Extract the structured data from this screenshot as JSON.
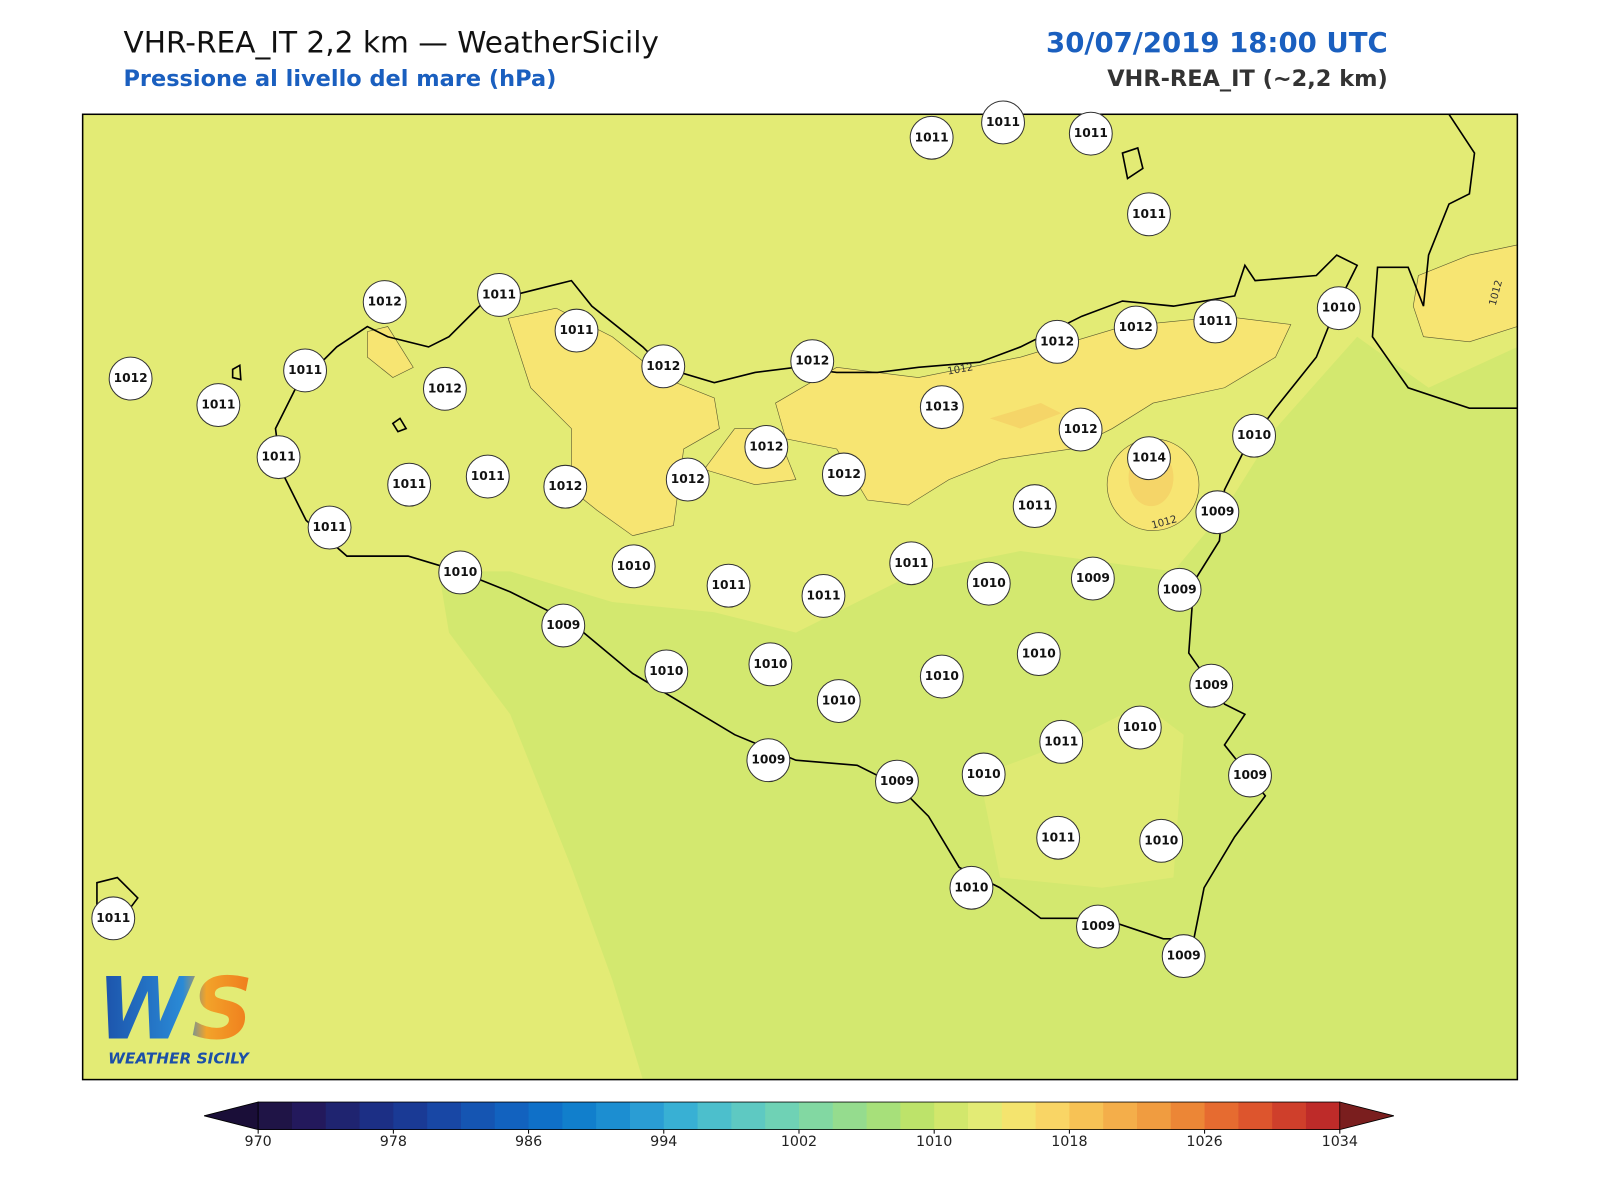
{
  "header": {
    "title": "VHR-REA_IT 2,2 km — WeatherSicily",
    "subtitle": "Pressione al livello del mare (hPa)",
    "date": "30/07/2019 18:00 UTC",
    "model": "VHR-REA_IT (~2,2 km)"
  },
  "stations": [
    1011,
    1011,
    1011,
    1011,
    1012,
    1011,
    1011,
    1012,
    1011,
    1011,
    1012,
    1012,
    1012,
    1012,
    1012,
    1011,
    1010,
    1013,
    1012,
    1010,
    1011,
    1012,
    1014,
    1011,
    1011,
    1012,
    1012,
    1012,
    1011,
    1009,
    1011,
    1011,
    1010,
    1010,
    1011,
    1011,
    1010,
    1009,
    1009,
    1009,
    1010,
    1010,
    1010,
    1010,
    1010,
    1009,
    1010,
    1011,
    1009,
    1009,
    1010,
    1009,
    1011,
    1010,
    1010,
    1009,
    1009,
    1011
  ],
  "contour_labels": [
    1012,
    1012,
    1012
  ],
  "logo": {
    "mark": "WS",
    "text": "WEATHER SICILY"
  },
  "colorbar": {
    "levels": [
      970,
      972,
      974,
      976,
      978,
      980,
      982,
      984,
      986,
      988,
      990,
      992,
      994,
      996,
      998,
      1000,
      1002,
      1004,
      1006,
      1008,
      1010,
      1012,
      1014,
      1016,
      1018,
      1020,
      1022,
      1024,
      1026,
      1028,
      1030,
      1032,
      1034
    ],
    "colors": [
      "#1f1446",
      "#23195c",
      "#1f2470",
      "#1c2f85",
      "#1a3a95",
      "#1847a5",
      "#1555b2",
      "#1262bf",
      "#0f70c8",
      "#117fcc",
      "#1c8ed1",
      "#2a9dd4",
      "#38b0d4",
      "#4cbfcc",
      "#5ec9c2",
      "#6fd2b5",
      "#82d8a2",
      "#95dc8e",
      "#a7e07a",
      "#bde36a",
      "#d2e76c",
      "#e3eb75",
      "#f4e46e",
      "#f9d565",
      "#f7c255",
      "#f4ae4a",
      "#f09c40",
      "#ec8636",
      "#e66b30",
      "#dd552d",
      "#cf3f2b",
      "#be2b29"
    ],
    "extend_colors": [
      "#1a0e38",
      "#7a1e1e"
    ],
    "ticks": [
      970,
      978,
      986,
      994,
      1002,
      1010,
      1018,
      1026,
      1034
    ]
  }
}
